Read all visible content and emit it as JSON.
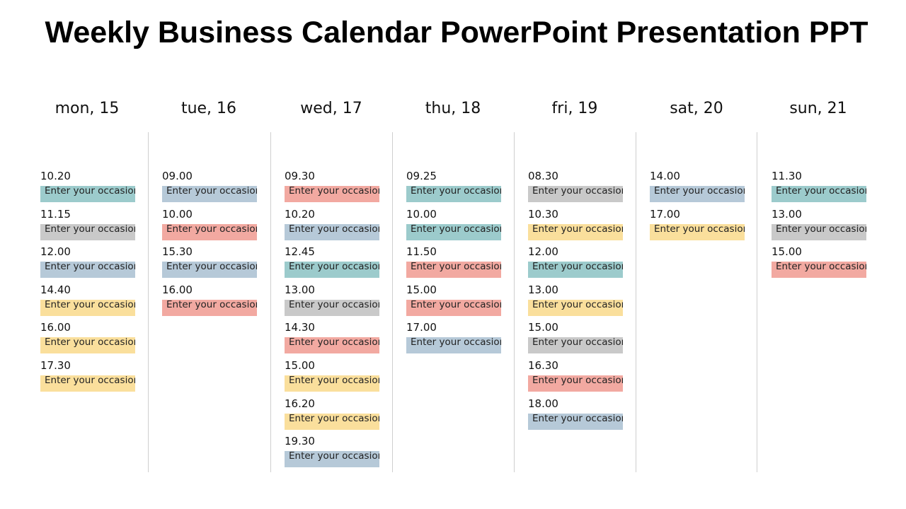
{
  "title": "Weekly Business Calendar PowerPoint Presentation PPT",
  "colors": {
    "teal": "#9ccbcc",
    "gray": "#c9c9c9",
    "blue": "#b6c9d8",
    "yellow": "#fadf9c",
    "red": "#f2a9a1",
    "divider": "#cfcfcf"
  },
  "placeholder_text": "Enter your occasion",
  "days": [
    {
      "label": "mon, 15",
      "events": [
        {
          "time": "10.20",
          "text": "Enter your occasion",
          "color": "teal"
        },
        {
          "time": "11.15",
          "text": "Enter your occasion",
          "color": "gray"
        },
        {
          "time": "12.00",
          "text": "Enter your occasion",
          "color": "blue"
        },
        {
          "time": "14.40",
          "text": "Enter your occasion",
          "color": "yellow"
        },
        {
          "time": "16.00",
          "text": "Enter your occasion",
          "color": "yellow"
        },
        {
          "time": "17.30",
          "text": "Enter your occasion",
          "color": "yellow"
        }
      ]
    },
    {
      "label": "tue, 16",
      "events": [
        {
          "time": "09.00",
          "text": "Enter your occasion",
          "color": "blue"
        },
        {
          "time": "10.00",
          "text": "Enter your occasion",
          "color": "red"
        },
        {
          "time": "15.30",
          "text": "Enter your occasion",
          "color": "blue"
        },
        {
          "time": "16.00",
          "text": "Enter your occasion",
          "color": "red"
        }
      ]
    },
    {
      "label": "wed, 17",
      "events": [
        {
          "time": "09.30",
          "text": "Enter your occasion",
          "color": "red"
        },
        {
          "time": "10.20",
          "text": "Enter your occasion",
          "color": "blue"
        },
        {
          "time": "12.45",
          "text": "Enter your occasion",
          "color": "teal"
        },
        {
          "time": "13.00",
          "text": "Enter your occasion",
          "color": "gray"
        },
        {
          "time": "14.30",
          "text": "Enter your occasion",
          "color": "red"
        },
        {
          "time": "15.00",
          "text": "Enter your occasion",
          "color": "yellow"
        },
        {
          "time": "16.20",
          "text": "Enter your occasion",
          "color": "yellow"
        },
        {
          "time": "19.30",
          "text": "Enter your occasion",
          "color": "blue"
        }
      ]
    },
    {
      "label": "thu, 18",
      "events": [
        {
          "time": "09.25",
          "text": "Enter your occasion",
          "color": "teal"
        },
        {
          "time": "10.00",
          "text": "Enter your occasion",
          "color": "teal"
        },
        {
          "time": "11.50",
          "text": "Enter your occasion",
          "color": "red"
        },
        {
          "time": "15.00",
          "text": "Enter your occasion",
          "color": "red"
        },
        {
          "time": "17.00",
          "text": "Enter your occasion",
          "color": "blue"
        }
      ]
    },
    {
      "label": "fri, 19",
      "events": [
        {
          "time": "08.30",
          "text": "Enter your occasion",
          "color": "gray"
        },
        {
          "time": "10.30",
          "text": "Enter your occasion",
          "color": "yellow"
        },
        {
          "time": "12.00",
          "text": "Enter your occasion",
          "color": "teal"
        },
        {
          "time": "13.00",
          "text": "Enter your occasion",
          "color": "yellow"
        },
        {
          "time": "15.00",
          "text": "Enter your occasion",
          "color": "gray"
        },
        {
          "time": "16.30",
          "text": "Enter your occasion",
          "color": "red"
        },
        {
          "time": "18.00",
          "text": "Enter your occasion",
          "color": "blue"
        }
      ]
    },
    {
      "label": "sat, 20",
      "events": [
        {
          "time": "14.00",
          "text": "Enter your occasion",
          "color": "blue"
        },
        {
          "time": "17.00",
          "text": "Enter your occasion",
          "color": "yellow"
        }
      ]
    },
    {
      "label": "sun, 21",
      "events": [
        {
          "time": "11.30",
          "text": "Enter your occasion",
          "color": "teal"
        },
        {
          "time": "13.00",
          "text": "Enter your occasion",
          "color": "gray"
        },
        {
          "time": "15.00",
          "text": "Enter your occasion",
          "color": "red"
        }
      ]
    }
  ]
}
